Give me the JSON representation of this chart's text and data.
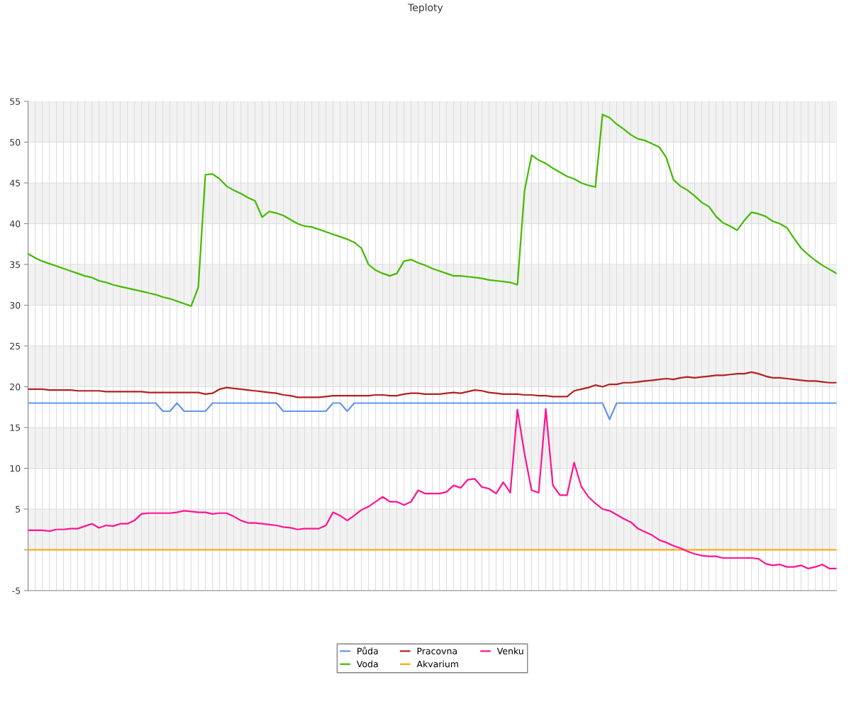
{
  "chart_data": {
    "type": "line",
    "title": "Teploty",
    "categories": [
      null,
      null,
      null,
      null,
      null,
      null,
      null,
      null,
      null,
      null,
      null,
      null,
      null,
      null,
      null,
      null,
      null,
      null,
      null,
      null,
      null,
      null,
      null,
      null,
      null,
      null,
      null,
      null,
      null,
      null,
      null,
      null,
      null,
      null,
      null,
      null,
      null,
      null,
      null,
      null,
      null,
      null,
      null,
      null,
      null,
      null,
      null,
      null,
      null,
      null,
      null,
      null,
      null,
      null,
      null,
      null,
      null,
      null,
      null,
      null,
      null,
      null,
      null,
      null,
      null,
      null,
      null,
      null,
      null,
      null,
      null,
      null,
      null,
      null,
      null,
      null,
      null,
      null,
      null,
      null,
      null,
      null,
      null,
      null,
      null,
      null,
      null,
      null,
      null,
      null,
      null,
      null,
      null,
      null,
      null,
      null,
      null,
      null,
      null,
      null,
      null,
      null,
      null,
      null,
      null,
      null,
      null,
      null,
      null,
      null,
      null,
      null,
      null,
      null,
      null
    ],
    "series": [
      {
        "name": "Půda",
        "color": "#6495ed",
        "values": [
          18,
          18,
          18,
          18,
          18,
          18,
          18,
          18,
          18,
          18,
          18,
          18,
          18,
          18,
          18,
          18,
          18,
          18,
          18,
          17,
          17,
          18,
          17,
          17,
          17,
          17,
          18,
          18,
          18,
          18,
          18,
          18,
          18,
          18,
          18,
          18,
          17,
          17,
          17,
          17,
          17,
          17,
          17,
          18,
          18,
          17,
          18,
          18,
          18,
          18,
          18,
          18,
          18,
          18,
          18,
          18,
          18,
          18,
          18,
          18,
          18,
          18,
          18,
          18,
          18,
          18,
          18,
          18,
          18,
          18,
          18,
          18,
          18,
          18,
          18,
          18,
          18,
          18,
          18,
          18,
          18,
          18,
          16,
          18,
          18,
          18,
          18,
          18,
          18,
          18,
          18,
          18,
          18,
          18,
          18,
          18,
          18,
          18,
          18,
          18,
          18,
          18,
          18,
          18,
          18,
          18,
          18,
          18,
          18,
          18,
          18,
          18,
          18,
          18,
          18
        ]
      },
      {
        "name": "Voda",
        "color": "#44bb00",
        "values": [
          36.3,
          35.8,
          35.4,
          35.1,
          34.8,
          34.5,
          34.2,
          33.9,
          33.6,
          33.4,
          33.0,
          32.8,
          32.5,
          32.3,
          32.1,
          31.9,
          31.7,
          31.5,
          31.3,
          31.0,
          30.8,
          30.5,
          30.2,
          29.9,
          32.2,
          46.0,
          46.1,
          45.5,
          44.6,
          44.1,
          43.7,
          43.2,
          42.8,
          40.8,
          41.5,
          41.3,
          41.0,
          40.5,
          40.0,
          39.7,
          39.6,
          39.3,
          39.0,
          38.7,
          38.4,
          38.1,
          37.7,
          37.0,
          35.0,
          34.3,
          33.9,
          33.6,
          33.9,
          35.4,
          35.6,
          35.2,
          34.9,
          34.5,
          34.2,
          33.9,
          33.6,
          33.6,
          33.5,
          33.4,
          33.3,
          33.1,
          33.0,
          32.9,
          32.8,
          32.5,
          44.0,
          48.4,
          47.8,
          47.4,
          46.8,
          46.3,
          45.8,
          45.5,
          45.0,
          44.7,
          44.5,
          53.4,
          53.0,
          52.2,
          51.6,
          50.9,
          50.4,
          50.2,
          49.8,
          49.4,
          48.1,
          45.4,
          44.6,
          44.1,
          43.4,
          42.6,
          42.1,
          40.9,
          40.1,
          39.7,
          39.2,
          40.4,
          41.4,
          41.2,
          40.9,
          40.3,
          40.0,
          39.5,
          38.2,
          37.0,
          36.2,
          35.5,
          34.9,
          34.4,
          33.9
        ]
      },
      {
        "name": "Pracovna",
        "color": "#b22222",
        "values": [
          19.7,
          19.7,
          19.7,
          19.6,
          19.6,
          19.6,
          19.6,
          19.5,
          19.5,
          19.5,
          19.5,
          19.4,
          19.4,
          19.4,
          19.4,
          19.4,
          19.4,
          19.3,
          19.3,
          19.3,
          19.3,
          19.3,
          19.3,
          19.3,
          19.3,
          19.1,
          19.2,
          19.7,
          19.9,
          19.8,
          19.7,
          19.6,
          19.5,
          19.4,
          19.3,
          19.2,
          19.0,
          18.9,
          18.7,
          18.7,
          18.7,
          18.7,
          18.8,
          18.9,
          18.9,
          18.9,
          18.9,
          18.9,
          18.9,
          19.0,
          19.0,
          18.9,
          18.9,
          19.1,
          19.2,
          19.2,
          19.1,
          19.1,
          19.1,
          19.2,
          19.3,
          19.2,
          19.4,
          19.6,
          19.5,
          19.3,
          19.2,
          19.1,
          19.1,
          19.1,
          19.0,
          19.0,
          18.9,
          18.9,
          18.8,
          18.8,
          18.8,
          19.5,
          19.7,
          19.9,
          20.2,
          20.0,
          20.3,
          20.3,
          20.5,
          20.5,
          20.6,
          20.7,
          20.8,
          20.9,
          21.0,
          20.9,
          21.1,
          21.2,
          21.1,
          21.2,
          21.3,
          21.4,
          21.4,
          21.5,
          21.6,
          21.6,
          21.8,
          21.6,
          21.3,
          21.1,
          21.1,
          21.0,
          20.9,
          20.8,
          20.7,
          20.7,
          20.6,
          20.5,
          20.5
        ]
      },
      {
        "name": "Akvarium",
        "color": "#ffa500",
        "values": [
          0,
          0,
          0,
          0,
          0,
          0,
          0,
          0,
          0,
          0,
          0,
          0,
          0,
          0,
          0,
          0,
          0,
          0,
          0,
          0,
          0,
          0,
          0,
          0,
          0,
          0,
          0,
          0,
          0,
          0,
          0,
          0,
          0,
          0,
          0,
          0,
          0,
          0,
          0,
          0,
          0,
          0,
          0,
          0,
          0,
          0,
          0,
          0,
          0,
          0,
          0,
          0,
          0,
          0,
          0,
          0,
          0,
          0,
          0,
          0,
          0,
          0,
          0,
          0,
          0,
          0,
          0,
          0,
          0,
          0,
          0,
          0,
          0,
          0,
          0,
          0,
          0,
          0,
          0,
          0,
          0,
          0,
          0,
          0,
          0,
          0,
          0,
          0,
          0,
          0,
          0,
          0,
          0,
          0,
          0,
          0,
          0,
          0,
          0,
          0,
          0,
          0,
          0,
          0,
          0,
          0,
          0,
          0,
          0,
          0,
          0,
          0,
          0,
          0,
          0
        ]
      },
      {
        "name": "Venku",
        "color": "#ff1493",
        "values": [
          2.4,
          2.4,
          2.4,
          2.3,
          2.5,
          2.5,
          2.6,
          2.6,
          2.9,
          3.2,
          2.7,
          3.0,
          2.9,
          3.2,
          3.2,
          3.6,
          4.4,
          4.5,
          4.5,
          4.5,
          4.5,
          4.6,
          4.8,
          4.7,
          4.6,
          4.6,
          4.4,
          4.5,
          4.5,
          4.1,
          3.6,
          3.3,
          3.3,
          3.2,
          3.1,
          3.0,
          2.8,
          2.7,
          2.5,
          2.6,
          2.6,
          2.6,
          3.0,
          4.6,
          4.2,
          3.6,
          4.2,
          4.9,
          5.3,
          5.9,
          6.5,
          5.9,
          5.9,
          5.5,
          5.9,
          7.3,
          6.9,
          6.9,
          6.9,
          7.1,
          7.9,
          7.6,
          8.6,
          8.7,
          7.7,
          7.5,
          6.9,
          8.3,
          7.0,
          17.2,
          11.8,
          7.3,
          7.0,
          17.3,
          7.9,
          6.7,
          6.7,
          10.7,
          7.8,
          6.5,
          5.7,
          5.0,
          4.8,
          4.3,
          3.8,
          3.4,
          2.6,
          2.2,
          1.8,
          1.2,
          0.9,
          0.5,
          0.2,
          -0.2,
          -0.5,
          -0.7,
          -0.8,
          -0.8,
          -1.0,
          -1.0,
          -1.0,
          -1.0,
          -1.0,
          -1.1,
          -1.7,
          -1.9,
          -1.8,
          -2.1,
          -2.1,
          -1.9,
          -2.3,
          -2.1,
          -1.8,
          -2.3,
          -2.3
        ]
      }
    ],
    "ylim": [
      -5,
      55
    ],
    "yticks": [
      -5,
      {
        "value": 0,
        "label": null
      },
      5,
      10,
      15,
      20,
      25,
      30,
      35,
      40,
      45,
      50,
      55
    ],
    "bands": [
      {
        "axis": "y",
        "from": 0,
        "to": 5,
        "color": "#f2f2f2"
      },
      {
        "axis": "y",
        "from": 10,
        "to": 15,
        "color": "#f2f2f2"
      },
      {
        "axis": "y",
        "from": 20,
        "to": 25,
        "color": "#f2f2f2"
      },
      {
        "axis": "y",
        "from": 30,
        "to": 35,
        "color": "#f2f2f2"
      },
      {
        "axis": "y",
        "from": 40,
        "to": 45,
        "color": "#f2f2f2"
      },
      {
        "axis": "y",
        "from": 50,
        "to": 55,
        "color": "#f2f2f2"
      }
    ],
    "grid": true,
    "legend": "bottom",
    "marker": "none",
    "line_style": "solid"
  }
}
